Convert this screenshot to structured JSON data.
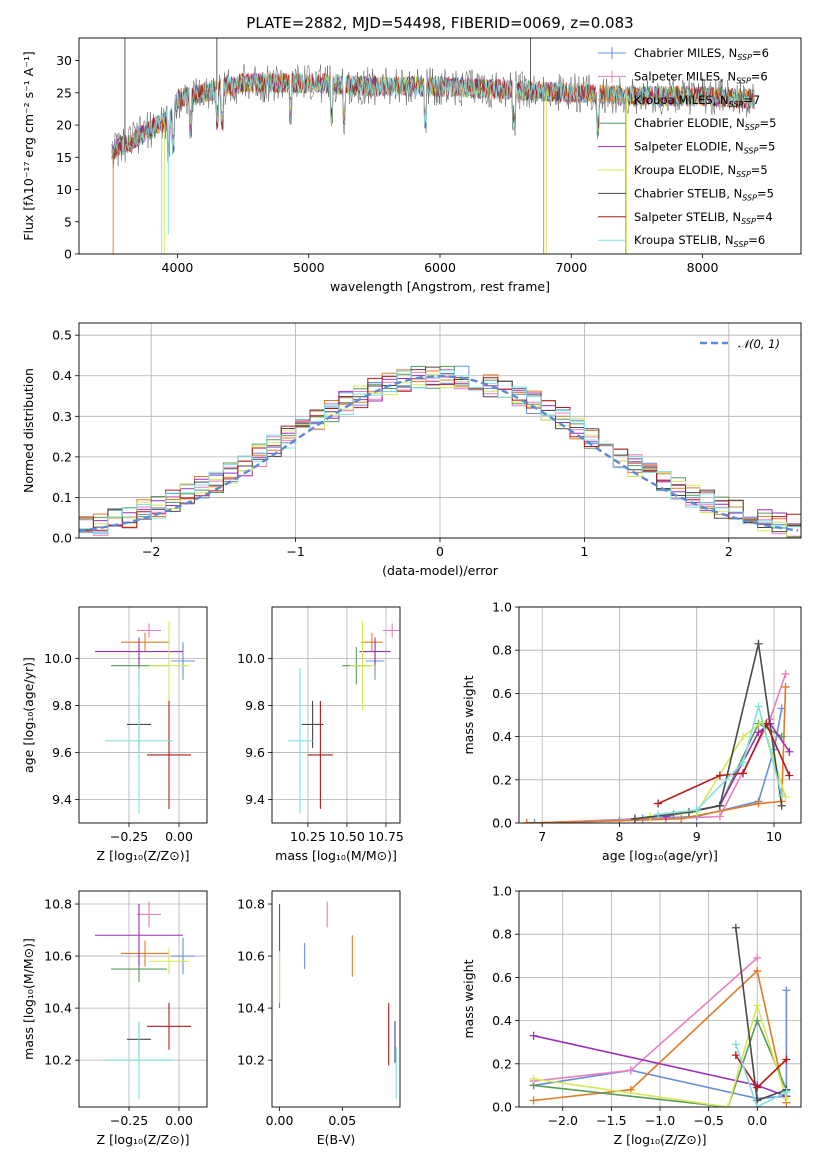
{
  "figure_title": "PLATE=2882, MJD=54498, FIBERID=0069, z=0.083",
  "colors": {
    "Chabrier MILES": "#6a8fd8",
    "Salpeter MILES": "#e87fc0",
    "Kroupa MILES": "#e07b2a",
    "Chabrier ELODIE": "#5a9a5a",
    "Salpeter ELODIE": "#9b30b5",
    "Kroupa ELODIE": "#d6e85a",
    "Chabrier STELIB": "#4a4a4a",
    "Salpeter STELIB": "#b01c1c",
    "Kroupa STELIB": "#7fe0e0"
  },
  "chart_data": [
    {
      "id": "spectrum",
      "type": "line",
      "xlabel": "wavelength [Angstrom, rest frame]",
      "ylabel": "Flux [fλ10⁻¹⁷ erg cm⁻² s⁻¹ A⁻¹]",
      "xlim": [
        3250,
        8750
      ],
      "ylim": [
        0,
        33.5
      ],
      "xticks": [
        "4000",
        "5000",
        "6000",
        "7000",
        "8000"
      ],
      "xtick_values": [
        4000,
        5000,
        6000,
        7000,
        8000
      ],
      "yticks": [
        "0",
        "5",
        "10",
        "15",
        "20",
        "25",
        "30"
      ],
      "ytick_values": [
        0,
        5,
        10,
        15,
        20,
        25,
        30
      ],
      "legend_position": "top-right",
      "legend": [
        "Chabrier MILES, N_SSP=6",
        "Salpeter MILES, N_SSP=6",
        "Kroupa MILES, N_SSP=7",
        "Chabrier ELODIE, N_SSP=5",
        "Salpeter ELODIE, N_SSP=5",
        "Kroupa ELODIE, N_SSP=5",
        "Chabrier STELIB, N_SSP=5",
        "Salpeter STELIB, N_SSP=4",
        "Kroupa STELIB, N_SSP=6"
      ],
      "continuum": [
        [
          3500,
          16
        ],
        [
          3650,
          17.5
        ],
        [
          3800,
          19.5
        ],
        [
          3950,
          21
        ],
        [
          4000,
          24
        ],
        [
          4200,
          25
        ],
        [
          4500,
          26.5
        ],
        [
          5000,
          26.5
        ],
        [
          5500,
          26
        ],
        [
          6000,
          26
        ],
        [
          6500,
          25.5
        ],
        [
          7000,
          25
        ],
        [
          7500,
          24.5
        ],
        [
          8000,
          24.5
        ],
        [
          8400,
          24
        ]
      ]
    },
    {
      "id": "residuals",
      "type": "histogram",
      "xlabel": "(data-model)/error",
      "ylabel": "Normed distribution",
      "xlim": [
        -2.5,
        2.5
      ],
      "ylim": [
        0,
        0.53
      ],
      "xticks": [
        "−2",
        "−1",
        "0",
        "1",
        "2"
      ],
      "xtick_values": [
        -2,
        -1,
        0,
        1,
        2
      ],
      "yticks": [
        "0.0",
        "0.1",
        "0.2",
        "0.3",
        "0.4",
        "0.5"
      ],
      "ytick_values": [
        0,
        0.1,
        0.2,
        0.3,
        0.4,
        0.5
      ],
      "grid": true,
      "legend": "𝒩(0, 1)",
      "legend_position": "top-right",
      "bin_width": 0.1
    },
    {
      "id": "age-Z",
      "type": "scatter",
      "xlabel": "Z [log₁₀(Z/Z⊙)]",
      "ylabel": "age  [log₁₀(age/yr)]",
      "xlim": [
        -0.5,
        0.14
      ],
      "ylim": [
        9.3,
        10.22
      ],
      "xticks": [
        "−0.25",
        "0.00"
      ],
      "xtick_values": [
        -0.25,
        0
      ],
      "yticks": [
        "9.4",
        "9.6",
        "9.8",
        "10.0"
      ],
      "ytick_values": [
        9.4,
        9.6,
        9.8,
        10.0
      ],
      "grid": true,
      "points": [
        {
          "model": "Chabrier MILES",
          "x": 0.02,
          "xerr": 0.06,
          "y": 9.99,
          "yerr": 0.08
        },
        {
          "model": "Salpeter MILES",
          "x": -0.15,
          "xerr": 0.06,
          "y": 10.12,
          "yerr": 0.03
        },
        {
          "model": "Kroupa MILES",
          "x": -0.17,
          "xerr": 0.12,
          "y": 10.07,
          "yerr": 0.04
        },
        {
          "model": "Chabrier ELODIE",
          "x": -0.2,
          "xerr": 0.14,
          "y": 9.97,
          "yerr": 0.08
        },
        {
          "model": "Salpeter ELODIE",
          "x": -0.2,
          "xerr": 0.22,
          "y": 10.03,
          "yerr": 0.06
        },
        {
          "model": "Kroupa ELODIE",
          "x": -0.05,
          "xerr": 0.1,
          "y": 9.97,
          "yerr": 0.19
        },
        {
          "model": "Chabrier STELIB",
          "x": -0.2,
          "xerr": 0.06,
          "y": 9.72,
          "yerr": 0.1
        },
        {
          "model": "Salpeter STELIB",
          "x": -0.05,
          "xerr": 0.11,
          "y": 9.59,
          "yerr": 0.23
        },
        {
          "model": "Kroupa STELIB",
          "x": -0.2,
          "xerr": 0.17,
          "y": 9.65,
          "yerr": 0.31
        }
      ]
    },
    {
      "id": "age-mass",
      "type": "scatter",
      "xlabel": "mass [log₁₀(M/M⊙)]",
      "ylabel": "",
      "xlim": [
        10.02,
        10.84
      ],
      "ylim": [
        9.3,
        10.22
      ],
      "xticks": [
        "10.25",
        "10.50",
        "10.75"
      ],
      "xtick_values": [
        10.25,
        10.5,
        10.75
      ],
      "yticks": [
        "9.4",
        "9.6",
        "9.8",
        "10.0"
      ],
      "ytick_values": [
        9.4,
        9.6,
        9.8,
        10.0
      ],
      "grid": true,
      "points": [
        {
          "model": "Chabrier MILES",
          "x": 10.68,
          "xerr": 0.06,
          "y": 9.99,
          "yerr": 0.08
        },
        {
          "model": "Salpeter MILES",
          "x": 10.79,
          "xerr": 0.06,
          "y": 10.12,
          "yerr": 0.03
        },
        {
          "model": "Kroupa MILES",
          "x": 10.66,
          "xerr": 0.07,
          "y": 10.07,
          "yerr": 0.04
        },
        {
          "model": "Chabrier ELODIE",
          "x": 10.56,
          "xerr": 0.09,
          "y": 9.97,
          "yerr": 0.08
        },
        {
          "model": "Salpeter ELODIE",
          "x": 10.68,
          "xerr": 0.1,
          "y": 10.03,
          "yerr": 0.06
        },
        {
          "model": "Kroupa ELODIE",
          "x": 10.6,
          "xerr": 0.08,
          "y": 9.97,
          "yerr": 0.19
        },
        {
          "model": "Chabrier STELIB",
          "x": 10.28,
          "xerr": 0.07,
          "y": 9.72,
          "yerr": 0.1
        },
        {
          "model": "Salpeter STELIB",
          "x": 10.33,
          "xerr": 0.08,
          "y": 9.59,
          "yerr": 0.23
        },
        {
          "model": "Kroupa STELIB",
          "x": 10.2,
          "xerr": 0.08,
          "y": 9.65,
          "yerr": 0.31
        }
      ]
    },
    {
      "id": "massweight-age",
      "type": "line",
      "xlabel": "age  [log₁₀(age/yr)]",
      "ylabel": "mass weight",
      "xlim": [
        6.7,
        10.35
      ],
      "ylim": [
        0,
        1
      ],
      "xticks": [
        "7",
        "8",
        "9",
        "10"
      ],
      "xtick_values": [
        7,
        8,
        9,
        10
      ],
      "yticks": [
        "0.0",
        "0.2",
        "0.4",
        "0.6",
        "0.8",
        "1.0"
      ],
      "ytick_values": [
        0,
        0.2,
        0.4,
        0.6,
        0.8,
        1.0
      ],
      "grid": true,
      "series": [
        {
          "model": "Chabrier MILES",
          "x": [
            6.9,
            8.3,
            9.0,
            9.8,
            10.0,
            10.1
          ],
          "y": [
            0.0,
            0.02,
            0.03,
            0.1,
            0.34,
            0.53
          ]
        },
        {
          "model": "Salpeter MILES",
          "x": [
            6.8,
            8.6,
            9.3,
            9.95,
            10.15
          ],
          "y": [
            0.0,
            0.02,
            0.03,
            0.48,
            0.69
          ]
        },
        {
          "model": "Kroupa MILES",
          "x": [
            6.8,
            8.0,
            8.8,
            9.8,
            10.1,
            10.15
          ],
          "y": [
            0.0,
            0.01,
            0.02,
            0.09,
            0.1,
            0.63
          ]
        },
        {
          "model": "Chabrier ELODIE",
          "x": [
            8.2,
            8.7,
            9.3,
            9.8,
            10.1
          ],
          "y": [
            0.02,
            0.04,
            0.08,
            0.46,
            0.4
          ]
        },
        {
          "model": "Salpeter ELODIE",
          "x": [
            8.6,
            9.3,
            9.8,
            9.95,
            10.2
          ],
          "y": [
            0.03,
            0.08,
            0.42,
            0.46,
            0.33
          ]
        },
        {
          "model": "Kroupa ELODIE",
          "x": [
            8.4,
            9.0,
            9.6,
            9.85,
            10.15
          ],
          "y": [
            0.03,
            0.05,
            0.4,
            0.47,
            0.12
          ]
        },
        {
          "model": "Chabrier STELIB",
          "x": [
            8.2,
            8.9,
            9.3,
            9.8,
            10.1
          ],
          "y": [
            0.02,
            0.05,
            0.08,
            0.83,
            0.08
          ]
        },
        {
          "model": "Salpeter STELIB",
          "x": [
            8.5,
            9.3,
            9.6,
            9.9,
            10.2
          ],
          "y": [
            0.09,
            0.22,
            0.23,
            0.46,
            0.22
          ]
        },
        {
          "model": "Kroupa STELIB",
          "x": [
            8.5,
            9.0,
            9.6,
            9.8,
            10.1
          ],
          "y": [
            0.04,
            0.06,
            0.28,
            0.54,
            0.13
          ]
        }
      ]
    },
    {
      "id": "mass-Z",
      "type": "scatter",
      "xlabel": "Z [log₁₀(Z/Z⊙)]",
      "ylabel": "mass [log₁₀(M/M⊙)]",
      "xlim": [
        -0.5,
        0.14
      ],
      "ylim": [
        10.02,
        10.85
      ],
      "xticks": [
        "−0.25",
        "0.00"
      ],
      "xtick_values": [
        -0.25,
        0
      ],
      "yticks": [
        "10.2",
        "10.4",
        "10.6",
        "10.8"
      ],
      "ytick_values": [
        10.2,
        10.4,
        10.6,
        10.8
      ],
      "grid": true,
      "points": [
        {
          "model": "Chabrier MILES",
          "x": 0.02,
          "xerr": 0.06,
          "y": 10.6,
          "yerr": 0.07
        },
        {
          "model": "Salpeter MILES",
          "x": -0.15,
          "xerr": 0.06,
          "y": 10.76,
          "yerr": 0.05
        },
        {
          "model": "Kroupa MILES",
          "x": -0.17,
          "xerr": 0.12,
          "y": 10.61,
          "yerr": 0.05
        },
        {
          "model": "Chabrier ELODIE",
          "x": -0.2,
          "xerr": 0.14,
          "y": 10.55,
          "yerr": 0.05
        },
        {
          "model": "Salpeter ELODIE",
          "x": -0.2,
          "xerr": 0.22,
          "y": 10.68,
          "yerr": 0.12
        },
        {
          "model": "Kroupa ELODIE",
          "x": -0.05,
          "xerr": 0.1,
          "y": 10.58,
          "yerr": 0.05
        },
        {
          "model": "Chabrier STELIB",
          "x": -0.2,
          "xerr": 0.06,
          "y": 10.28,
          "yerr": 0.06
        },
        {
          "model": "Salpeter STELIB",
          "x": -0.05,
          "xerr": 0.11,
          "y": 10.33,
          "yerr": 0.09
        },
        {
          "model": "Kroupa STELIB",
          "x": -0.2,
          "xerr": 0.17,
          "y": 10.2,
          "yerr": 0.15
        }
      ]
    },
    {
      "id": "mass-ebv",
      "type": "scatter",
      "xlabel": "E(B-V)",
      "ylabel": "",
      "xlim": [
        -0.006,
        0.096
      ],
      "ylim": [
        10.02,
        10.85
      ],
      "xticks": [
        "0.00",
        "0.05"
      ],
      "xtick_values": [
        0,
        0.05
      ],
      "yticks": [
        "10.2",
        "10.4",
        "10.6",
        "10.8"
      ],
      "ytick_values": [
        10.2,
        10.4,
        10.6,
        10.8
      ],
      "points": [
        {
          "model": "Chabrier MILES",
          "x": 0.02,
          "y": 10.6,
          "yerr": 0.05
        },
        {
          "model": "Salpeter MILES",
          "x": 0.038,
          "y": 10.76,
          "yerr": 0.05
        },
        {
          "model": "Kroupa MILES",
          "x": 0.058,
          "y": 10.6,
          "yerr": 0.08
        },
        {
          "model": "Chabrier ELODIE",
          "x": 0.0,
          "y": 10.52,
          "yerr": 0.12
        },
        {
          "model": "Salpeter ELODIE",
          "x": 0.0,
          "y": 10.7,
          "yerr": 0.1
        },
        {
          "model": "Kroupa ELODIE",
          "x": 0.0,
          "y": 10.52,
          "yerr": 0.1
        },
        {
          "model": "Chabrier STELIB",
          "x": 0.092,
          "y": 10.27,
          "yerr": 0.08
        },
        {
          "model": "Salpeter STELIB",
          "x": 0.087,
          "y": 10.3,
          "yerr": 0.12
        },
        {
          "model": "Kroupa STELIB",
          "x": 0.093,
          "y": 10.15,
          "yerr": 0.1
        }
      ]
    },
    {
      "id": "massweight-Z",
      "type": "line",
      "xlabel": "Z [log₁₀(Z/Z⊙)]",
      "ylabel": "mass weight",
      "xlim": [
        -2.45,
        0.45
      ],
      "ylim": [
        0,
        1
      ],
      "xticks": [
        "−2.0",
        "−1.5",
        "−1.0",
        "−0.5",
        "0.0"
      ],
      "xtick_values": [
        -2.0,
        -1.5,
        -1.0,
        -0.5,
        0.0
      ],
      "yticks": [
        "0.0",
        "0.2",
        "0.4",
        "0.6",
        "0.8",
        "1.0"
      ],
      "ytick_values": [
        0,
        0.2,
        0.4,
        0.6,
        0.8,
        1.0
      ],
      "grid": true,
      "series": [
        {
          "model": "Chabrier MILES",
          "x": [
            -2.3,
            -1.3,
            0.0,
            0.3,
            0.3
          ],
          "y": [
            0.1,
            0.17,
            0.04,
            0.05,
            0.54
          ]
        },
        {
          "model": "Salpeter MILES",
          "x": [
            -2.3,
            -1.3,
            0.0
          ],
          "y": [
            0.12,
            0.17,
            0.69
          ]
        },
        {
          "model": "Kroupa MILES",
          "x": [
            -2.3,
            -1.3,
            0.0,
            0.3
          ],
          "y": [
            0.03,
            0.08,
            0.63,
            0.02
          ]
        },
        {
          "model": "Chabrier ELODIE",
          "x": [
            -2.3,
            -0.3,
            0.0,
            0.3
          ],
          "y": [
            0.1,
            0.0,
            0.4,
            0.08
          ]
        },
        {
          "model": "Salpeter ELODIE",
          "x": [
            -2.3,
            0.0,
            0.3
          ],
          "y": [
            0.33,
            0.1,
            0.05
          ]
        },
        {
          "model": "Kroupa ELODIE",
          "x": [
            -2.3,
            -0.3,
            0.0,
            0.3
          ],
          "y": [
            0.13,
            0.0,
            0.47,
            0.04
          ]
        },
        {
          "model": "Chabrier STELIB",
          "x": [
            -0.22,
            0.0,
            0.3
          ],
          "y": [
            0.83,
            0.03,
            0.08
          ]
        },
        {
          "model": "Salpeter STELIB",
          "x": [
            -0.22,
            0.0,
            0.3
          ],
          "y": [
            0.24,
            0.09,
            0.22
          ]
        },
        {
          "model": "Kroupa STELIB",
          "x": [
            -0.22,
            0.0,
            0.3
          ],
          "y": [
            0.29,
            0.0,
            0.07
          ]
        }
      ]
    }
  ]
}
